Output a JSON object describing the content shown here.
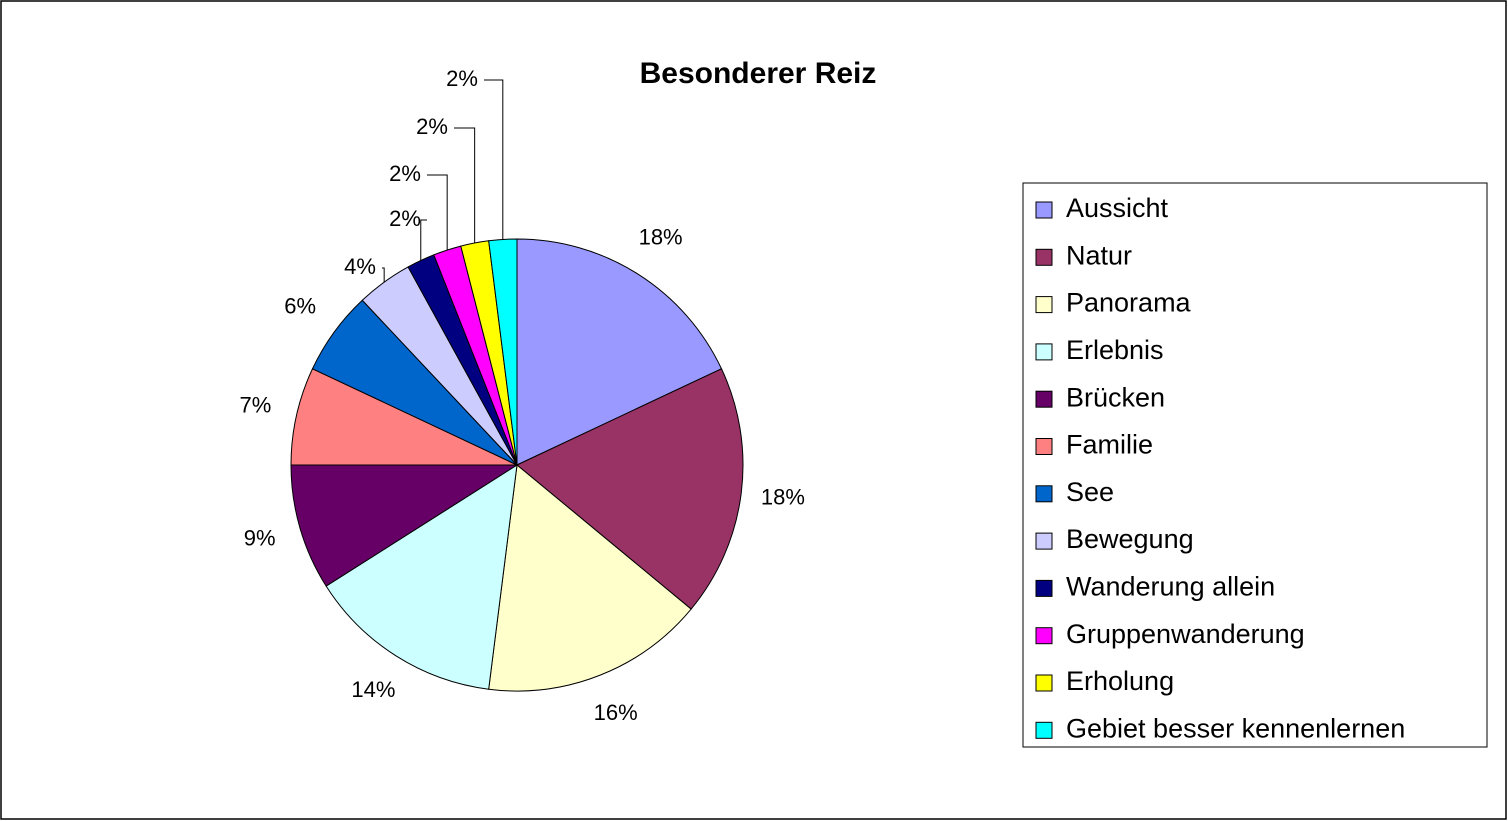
{
  "chart_data": {
    "type": "pie",
    "title": "Besonderer Reiz",
    "categories": [
      "Aussicht",
      "Natur",
      "Panorama",
      "Erlebnis",
      "Brücken",
      "Familie",
      "See",
      "Bewegung",
      "Wanderung allein",
      "Gruppenwanderung",
      "Erholung",
      "Gebiet besser kennenlernen"
    ],
    "values": [
      18,
      18,
      16,
      14,
      9,
      7,
      6,
      4,
      2,
      2,
      2,
      2
    ],
    "value_labels": [
      "18%",
      "18%",
      "16%",
      "14%",
      "9%",
      "7%",
      "6%",
      "4%",
      "2%",
      "2%",
      "2%",
      "2%"
    ],
    "colors": [
      "#9999ff",
      "#993366",
      "#ffffcc",
      "#ccffff",
      "#660066",
      "#ff8080",
      "#0066cc",
      "#ccccff",
      "#000080",
      "#ff00ff",
      "#ffff00",
      "#00ffff"
    ],
    "legend": "right"
  }
}
